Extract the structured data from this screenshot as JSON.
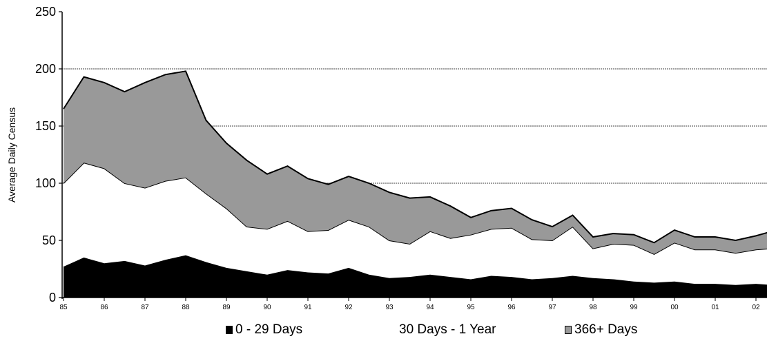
{
  "chart_data": {
    "type": "area",
    "title": "",
    "xlabel": "",
    "ylabel": "Average Daily Census",
    "ylim": [
      0,
      250
    ],
    "yticks": [
      0,
      50,
      100,
      150,
      200,
      250
    ],
    "xtick_labels": [
      "85",
      "86",
      "87",
      "88",
      "89",
      "90",
      "91",
      "92",
      "93",
      "94",
      "95",
      "96",
      "97",
      "98",
      "99",
      "00",
      "01",
      "02"
    ],
    "stacked": true,
    "grid": "horizontal dashed at 100, 150, 200",
    "legend_position": "bottom",
    "series": [
      {
        "name": "0 - 29 Days",
        "color": "#000000",
        "x": [
          "85",
          "85.5",
          "86",
          "86.5",
          "87",
          "87.5",
          "88",
          "88.5",
          "89",
          "89.5",
          "90",
          "90.5",
          "91",
          "91.5",
          "92",
          "92.5",
          "93",
          "93.5",
          "94",
          "94.5",
          "95",
          "95.5",
          "96",
          "96.5",
          "97",
          "97.5",
          "98",
          "98.5",
          "99",
          "99.5",
          "00",
          "00.5",
          "01",
          "01.5",
          "02",
          "02.4"
        ],
        "values": [
          27,
          35,
          30,
          32,
          28,
          33,
          37,
          31,
          26,
          23,
          20,
          24,
          22,
          21,
          26,
          20,
          17,
          18,
          20,
          18,
          16,
          19,
          18,
          16,
          17,
          19,
          17,
          16,
          14,
          13,
          14,
          12,
          12,
          11,
          12,
          11
        ]
      },
      {
        "name": "30 Days - 1 Year",
        "color": "#ffffff",
        "x": [
          "85",
          "85.5",
          "86",
          "86.5",
          "87",
          "87.5",
          "88",
          "88.5",
          "89",
          "89.5",
          "90",
          "90.5",
          "91",
          "91.5",
          "92",
          "92.5",
          "93",
          "93.5",
          "94",
          "94.5",
          "95",
          "95.5",
          "96",
          "96.5",
          "97",
          "97.5",
          "98",
          "98.5",
          "99",
          "99.5",
          "00",
          "00.5",
          "01",
          "01.5",
          "02",
          "02.4"
        ],
        "values": [
          73,
          83,
          83,
          68,
          68,
          69,
          68,
          60,
          52,
          39,
          40,
          43,
          36,
          38,
          42,
          42,
          33,
          29,
          38,
          34,
          39,
          41,
          43,
          35,
          33,
          43,
          26,
          31,
          32,
          25,
          34,
          30,
          30,
          28,
          30,
          32
        ]
      },
      {
        "name": "366+ Days",
        "color": "#999999",
        "x": [
          "85",
          "85.5",
          "86",
          "86.5",
          "87",
          "87.5",
          "88",
          "88.5",
          "89",
          "89.5",
          "90",
          "90.5",
          "91",
          "91.5",
          "92",
          "92.5",
          "93",
          "93.5",
          "94",
          "94.5",
          "95",
          "95.5",
          "96",
          "96.5",
          "97",
          "97.5",
          "98",
          "98.5",
          "99",
          "99.5",
          "00",
          "00.5",
          "01",
          "01.5",
          "02",
          "02.4"
        ],
        "values": [
          65,
          75,
          75,
          80,
          92,
          93,
          93,
          64,
          57,
          58,
          48,
          48,
          46,
          40,
          38,
          38,
          42,
          40,
          30,
          28,
          15,
          16,
          17,
          17,
          12,
          10,
          10,
          9,
          9,
          10,
          11,
          11,
          11,
          11,
          12,
          15
        ]
      }
    ]
  }
}
